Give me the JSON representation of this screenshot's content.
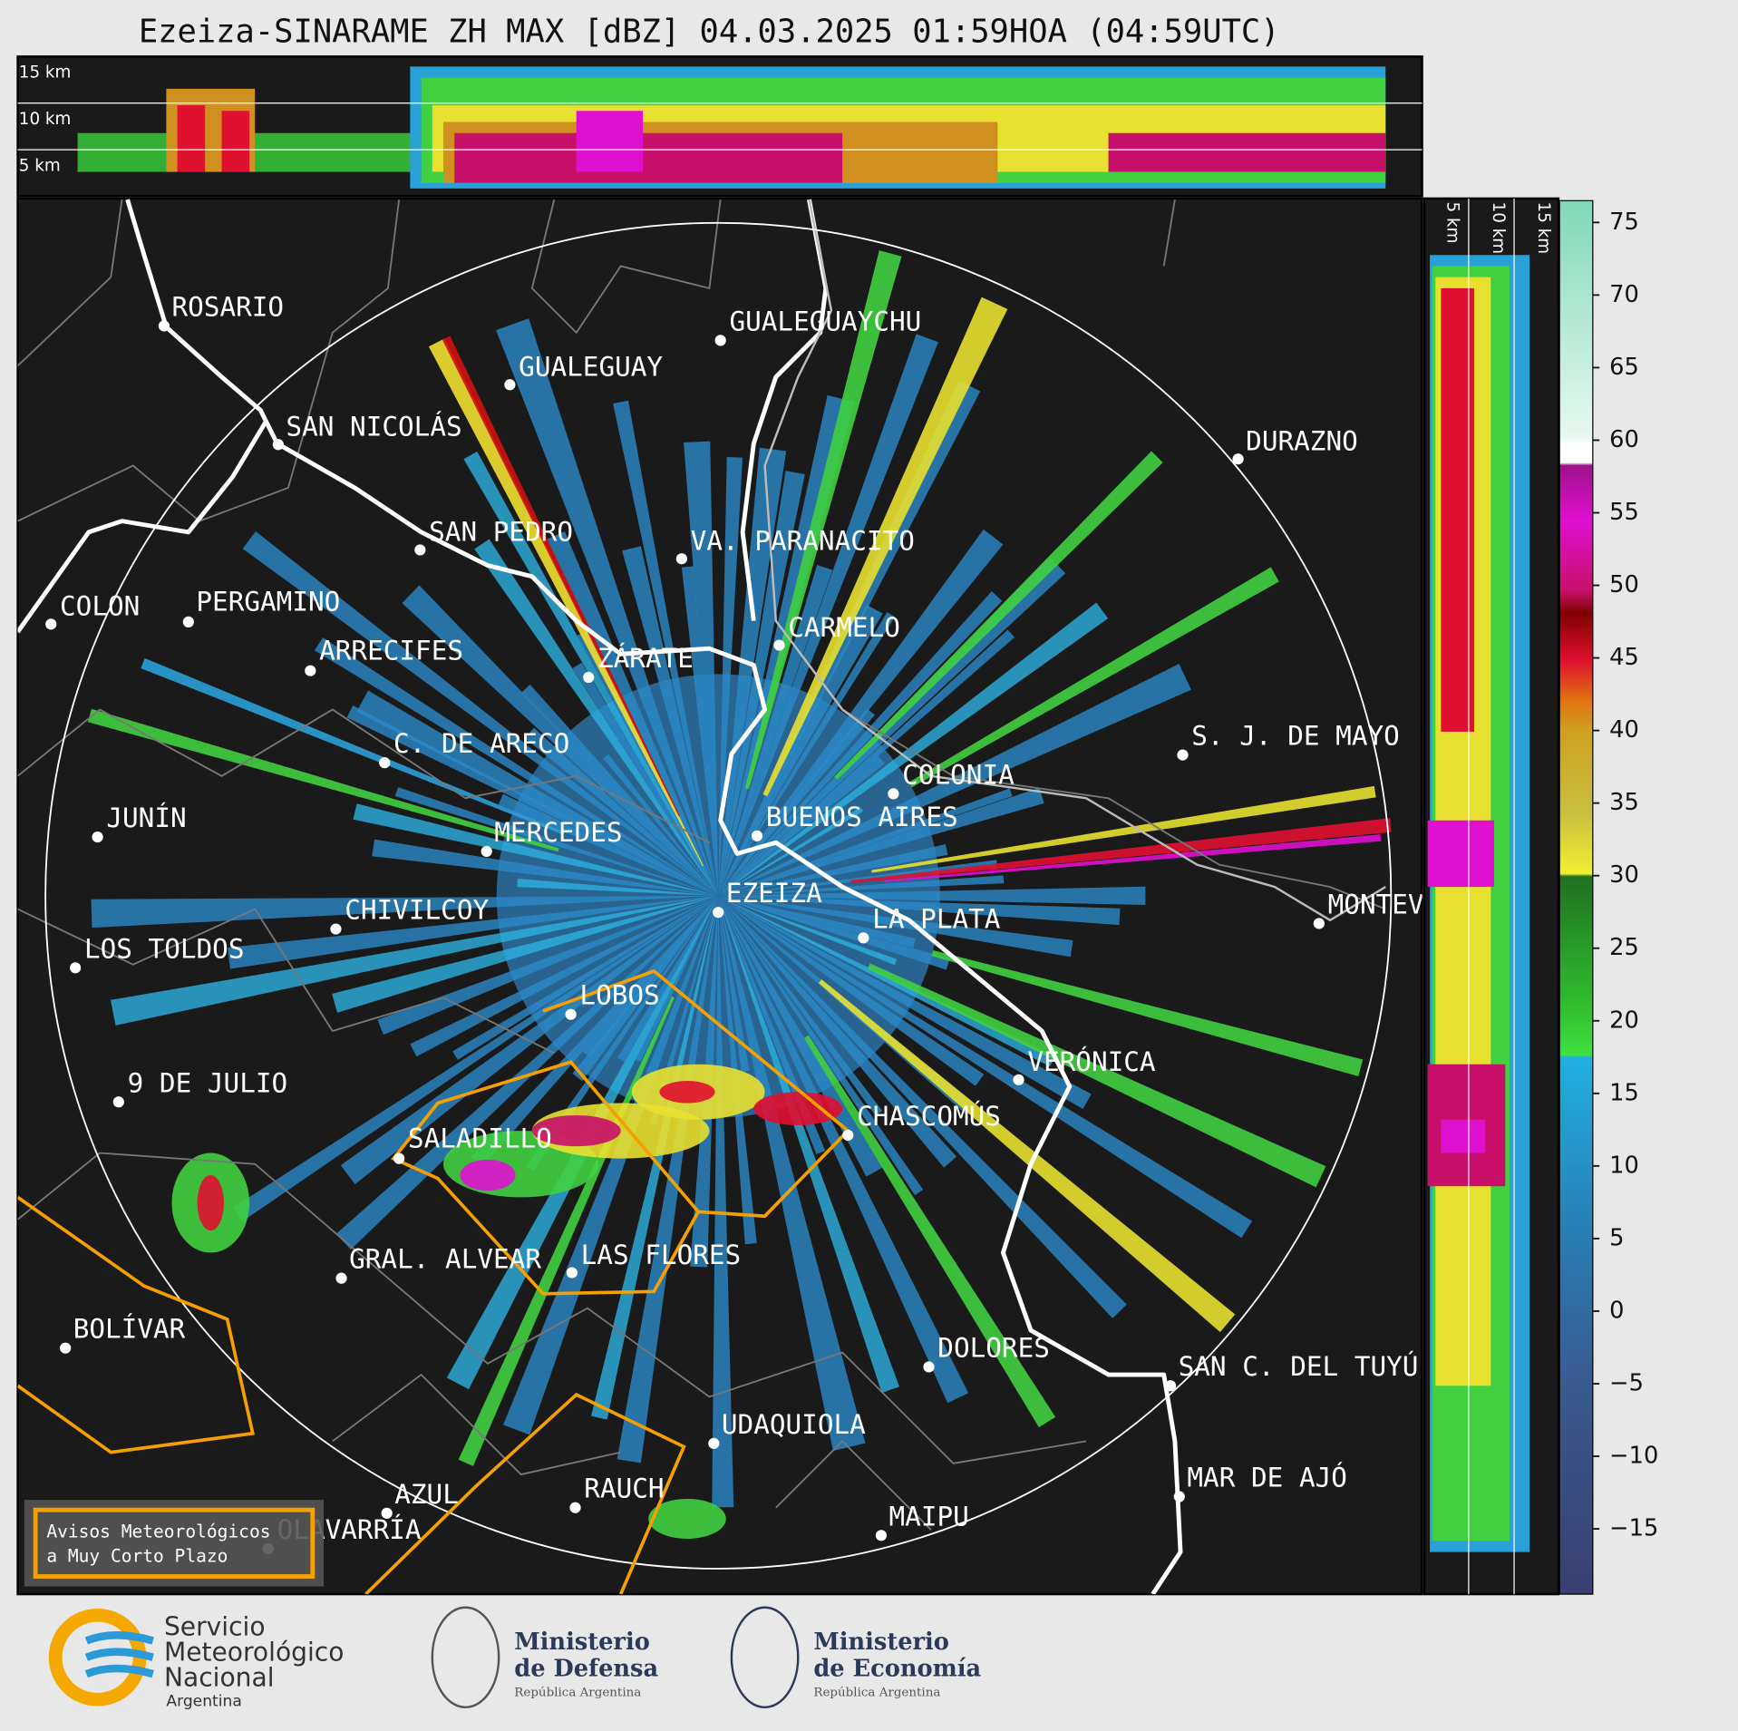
{
  "title": "Ezeiza-SINARAME ZH MAX [dBZ] 04.03.2025 01:59HOA (04:59UTC)",
  "height_labels": [
    "15 km",
    "10 km",
    "5 km"
  ],
  "cities": [
    "ROSARIO",
    "GUALEGUAYCHU",
    "GUALEGUAY",
    "SAN NICOLÁS",
    "DURAZNO",
    "SAN PEDRO",
    "VA. PARANACITO",
    "COLON",
    "PERGAMINO",
    "CARMELO",
    "ARRECIFES",
    "ZÁRATE",
    "C. DE ARECO",
    "S. J. DE MAYO",
    "COLONIA",
    "JUNÍN",
    "BUENOS AIRES",
    "MERCEDES",
    "EZEIZA",
    "MONTEVIDEO",
    "LA PLATA",
    "CHIVILCOY",
    "LOS TOLDOS",
    "LOBOS",
    "VERÓNICA",
    "9 DE JULIO",
    "CHASCOMÚS",
    "SALADILLO",
    "GRAL. ALVEAR",
    "LAS FLORES",
    "BOLÍVAR",
    "DOLORES",
    "SAN C. DEL TUYÚ",
    "UDAQUIOLA",
    "MAR DE AJÓ",
    "AZUL",
    "RAUCH",
    "OLAVARRÍA",
    "MAIPU"
  ],
  "colorbar": {
    "lim": [
      -19.5,
      76.5
    ],
    "ticks": [
      {
        "value": -15,
        "label": "−15"
      },
      {
        "value": -10,
        "label": "−10"
      },
      {
        "value": -5,
        "label": "−5"
      },
      0,
      5,
      10,
      15,
      20,
      25,
      30,
      35,
      40,
      45,
      50,
      55,
      60,
      65,
      70,
      75
    ]
  },
  "legend": [
    "Avisos Meteorológicos",
    "a Muy Corto Plazo"
  ],
  "logos": [
    {
      "lines": [
        "Servicio",
        "Meteorológico",
        "Nacional",
        "Argentina"
      ]
    },
    {
      "lines": [
        "Ministerio",
        "de Defensa",
        "República Argentina"
      ]
    },
    {
      "lines": [
        "Ministerio",
        "de Economía",
        "República Argentina"
      ]
    }
  ]
}
